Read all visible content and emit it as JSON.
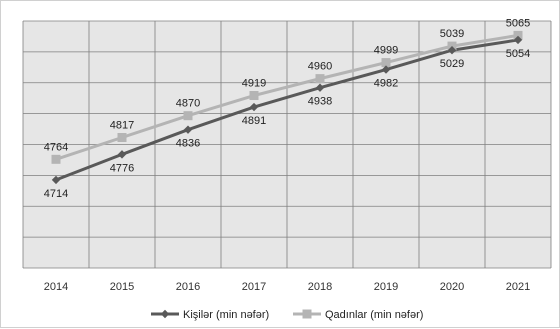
{
  "chart_data": {
    "type": "line",
    "categories": [
      "2014",
      "2015",
      "2016",
      "2017",
      "2018",
      "2019",
      "2020",
      "2021"
    ],
    "series": [
      {
        "name": "Kişilər (min nəfər)",
        "values": [
          4714,
          4776,
          4836,
          4891,
          4938,
          4982,
          5029,
          5054
        ],
        "color": "#595959",
        "marker": "diamond",
        "label_position": "below"
      },
      {
        "name": "Qadınlar (min nəfər)",
        "values": [
          4764,
          4817,
          4870,
          4919,
          4960,
          4999,
          5039,
          5065
        ],
        "color": "#b4b4b4",
        "marker": "square",
        "label_position": "above"
      }
    ],
    "ylim": [
      4500,
      5100
    ],
    "y_grid_step": 75,
    "grid": true,
    "plot_background": "#e6e6e6",
    "gridline_color": "#7f7f7f",
    "legend_position": "bottom"
  }
}
